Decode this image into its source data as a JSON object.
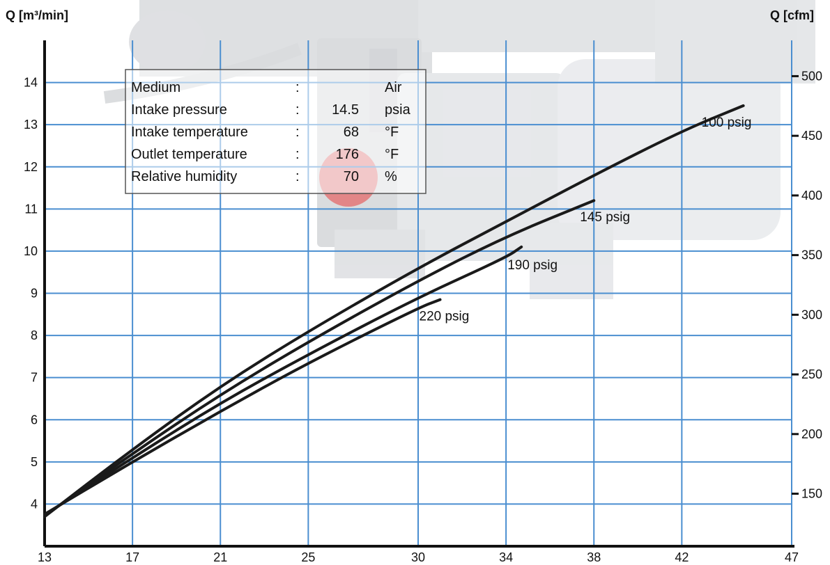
{
  "chart_data": {
    "type": "line",
    "ylabel_left": "Q [m³/min]",
    "ylabel_right": "Q [cfm]",
    "xlim": [
      13,
      47
    ],
    "ylim": [
      3,
      15
    ],
    "ylim_right": [
      106,
      530
    ],
    "x_ticks": [
      "13",
      "17",
      "21",
      "25",
      "30",
      "34",
      "38",
      "42",
      "47"
    ],
    "y_ticks": [
      "4",
      "5",
      "6",
      "7",
      "8",
      "9",
      "10",
      "11",
      "12",
      "13",
      "14"
    ],
    "y_right_ticks": [
      "150",
      "200",
      "250",
      "300",
      "350",
      "400",
      "450",
      "500"
    ],
    "grid": true,
    "series": [
      {
        "name": "100 psig",
        "x": [
          13,
          17,
          21,
          25,
          30,
          34,
          38,
          42,
          44.8
        ],
        "y": [
          3.7,
          5.3,
          6.8,
          8.1,
          9.6,
          10.7,
          11.8,
          12.85,
          13.45
        ]
      },
      {
        "name": "145 psig",
        "x": [
          13,
          17,
          21,
          25,
          30,
          34,
          38
        ],
        "y": [
          3.72,
          5.2,
          6.6,
          7.85,
          9.3,
          10.35,
          11.2
        ]
      },
      {
        "name": "190 psig",
        "x": [
          13,
          17,
          21,
          25,
          30,
          34,
          34.7
        ],
        "y": [
          3.74,
          5.1,
          6.4,
          7.55,
          8.9,
          9.85,
          10.1
        ]
      },
      {
        "name": "220 psig",
        "x": [
          13,
          17,
          21,
          25,
          30,
          31
        ],
        "y": [
          3.76,
          5.0,
          6.2,
          7.35,
          8.65,
          8.85
        ]
      }
    ],
    "curve_labels": [
      "100 psig",
      "145 psig",
      "190 psig",
      "220 psig"
    ],
    "conditions": [
      {
        "label": "Medium",
        "sep": ":",
        "value": "",
        "unit": "Air"
      },
      {
        "label": "Intake pressure",
        "sep": ":",
        "value": "14.5",
        "unit": "psia"
      },
      {
        "label": "Intake temperature",
        "sep": ":",
        "value": "68",
        "unit": "°F"
      },
      {
        "label": "Outlet temperature",
        "sep": ":",
        "value": "176",
        "unit": "°F"
      },
      {
        "label": "Relative humidity",
        "sep": ":",
        "value": "70",
        "unit": "%"
      }
    ],
    "colors": {
      "grid": "#4a8ed0",
      "curve": "#1a1a1a",
      "axis": "#111111",
      "background_photo": "#c9ccd2"
    }
  }
}
